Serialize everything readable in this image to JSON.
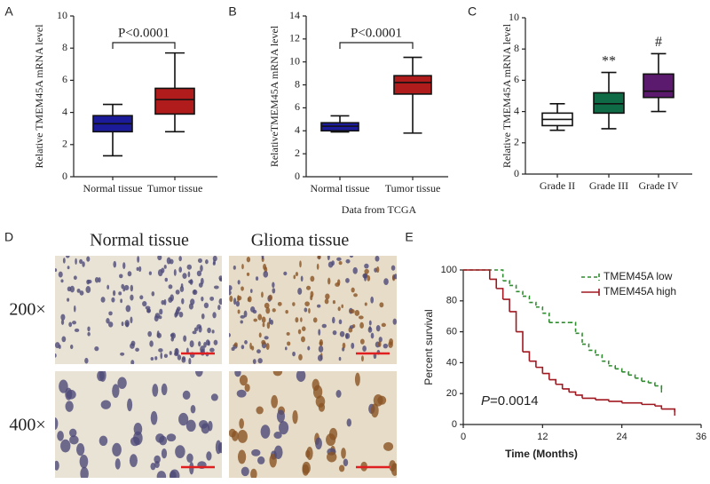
{
  "chart_data": [
    {
      "type": "box",
      "panel": "A",
      "ylabel": "Relative TMEM45A  mRNA level",
      "categories": [
        "Normal tissue",
        "Tumor tissue"
      ],
      "boxes": [
        {
          "whisker_low": 1.3,
          "q1": 2.8,
          "median": 3.3,
          "q3": 3.8,
          "whisker_high": 4.5,
          "color": "#1c1c9a"
        },
        {
          "whisker_low": 2.8,
          "q1": 3.9,
          "median": 4.8,
          "q3": 5.5,
          "whisker_high": 7.7,
          "color": "#b01c1c"
        }
      ],
      "annotation": "P<0.0001",
      "ylim": [
        0,
        10
      ],
      "yticks": [
        0,
        2,
        4,
        6,
        8,
        10
      ]
    },
    {
      "type": "box",
      "panel": "B",
      "ylabel": "RelativeTMEM45A  mRNA level",
      "xlabel": "Data from TCGA",
      "categories": [
        "Normal tissue",
        "Tumor tissue"
      ],
      "boxes": [
        {
          "whisker_low": 3.9,
          "q1": 4.0,
          "median": 4.4,
          "q3": 4.7,
          "whisker_high": 5.3,
          "color": "#1c1c9a"
        },
        {
          "whisker_low": 3.8,
          "q1": 7.2,
          "median": 8.2,
          "q3": 8.8,
          "whisker_high": 10.4,
          "color": "#b01c1c"
        }
      ],
      "annotation": "P<0.0001",
      "ylim": [
        0,
        14
      ],
      "yticks": [
        0,
        2,
        4,
        6,
        8,
        10,
        12,
        14
      ]
    },
    {
      "type": "box",
      "panel": "C",
      "ylabel": "Relative TMEM45A mRNA level",
      "categories": [
        "Grade II",
        "Grade III",
        "Grade IV"
      ],
      "boxes": [
        {
          "whisker_low": 2.8,
          "q1": 3.1,
          "median": 3.5,
          "q3": 3.9,
          "whisker_high": 4.5,
          "color": "#ffffff"
        },
        {
          "whisker_low": 2.9,
          "q1": 3.9,
          "median": 4.5,
          "q3": 5.2,
          "whisker_high": 6.5,
          "color": "#0f6b45",
          "annotation": "**"
        },
        {
          "whisker_low": 4.0,
          "q1": 4.9,
          "median": 5.3,
          "q3": 6.4,
          "whisker_high": 7.7,
          "color": "#5c1a6e",
          "annotation": "#"
        }
      ],
      "ylim": [
        0,
        10
      ],
      "yticks": [
        0,
        2,
        4,
        6,
        8,
        10
      ]
    },
    {
      "type": "survival",
      "panel": "E",
      "ylabel": "Percent survival",
      "xlabel": "Time (Months)",
      "annotation_symbol": "P",
      "annotation": "=0.0014",
      "series": [
        {
          "name": "TMEM45A low",
          "color": "#2e8b2e",
          "dashed": true,
          "x": [
            0,
            6,
            7,
            8,
            9,
            10,
            11,
            12,
            13,
            16,
            17,
            18,
            19,
            20,
            21,
            22,
            23,
            24,
            25,
            26,
            27,
            28,
            29,
            30
          ],
          "values": [
            100,
            93,
            90,
            86,
            83,
            79,
            76,
            72,
            66,
            66,
            59,
            52,
            48,
            45,
            41,
            38,
            36,
            34,
            32,
            30,
            28,
            27,
            25,
            23
          ]
        },
        {
          "name": "TMEM45A high",
          "color": "#a01820",
          "dashed": false,
          "x": [
            0,
            4,
            5,
            6,
            7,
            8,
            9,
            10,
            11,
            12,
            13,
            14,
            15,
            16,
            17,
            18,
            20,
            22,
            24,
            27,
            29,
            30,
            32
          ],
          "values": [
            100,
            94,
            88,
            81,
            73,
            60,
            47,
            41,
            37,
            33,
            29,
            26,
            23,
            21,
            19,
            17,
            16,
            15,
            14,
            13,
            12,
            10,
            8
          ]
        }
      ],
      "xlim": [
        0,
        36
      ],
      "xticks": [
        0,
        12,
        24,
        36
      ],
      "ylim": [
        0,
        100
      ],
      "yticks": [
        0,
        20,
        40,
        60,
        80,
        100
      ]
    }
  ],
  "panel_d": {
    "panel": "D",
    "columns": [
      "Normal tissue",
      "Glioma tissue"
    ],
    "rows": [
      "200×",
      "400×"
    ]
  }
}
